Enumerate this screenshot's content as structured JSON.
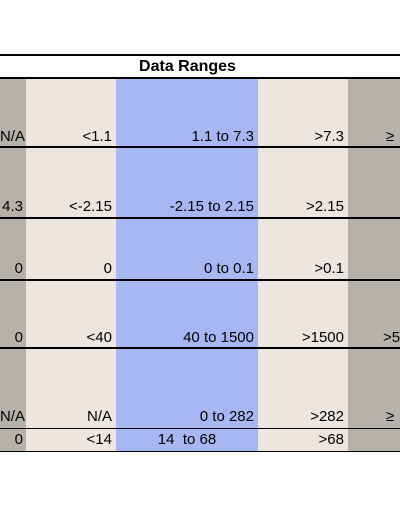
{
  "title": "Data Ranges",
  "rows": [
    {
      "c0": "N/A",
      "c1": "<1.1",
      "c2": "1.1 to 7.3",
      "c3": ">7.3",
      "c4": "≥"
    },
    {
      "c0": "4.3",
      "c1": "<-2.15",
      "c2": "-2.15 to 2.15",
      "c3": ">2.15",
      "c4": ""
    },
    {
      "c0": "0",
      "c1": "0",
      "c2": "0 to 0.1",
      "c3": ">0.1",
      "c4": ""
    },
    {
      "c0": "0",
      "c1": "<40",
      "c2": "40 to 1500",
      "c3": ">1500",
      "c4": ">5"
    },
    {
      "c0": "N/A",
      "c1": "N/A",
      "c2": "0 to 282",
      "c3": ">282",
      "c4": "≥"
    },
    {
      "c0": "0",
      "c1": "<14",
      "c2": "14  to 68",
      "c3": ">68",
      "c4": ""
    }
  ],
  "colors": {
    "grey_column": "#b6b2aa",
    "beige_column": "#eee6de",
    "blue_column": "#a7b7f3"
  }
}
